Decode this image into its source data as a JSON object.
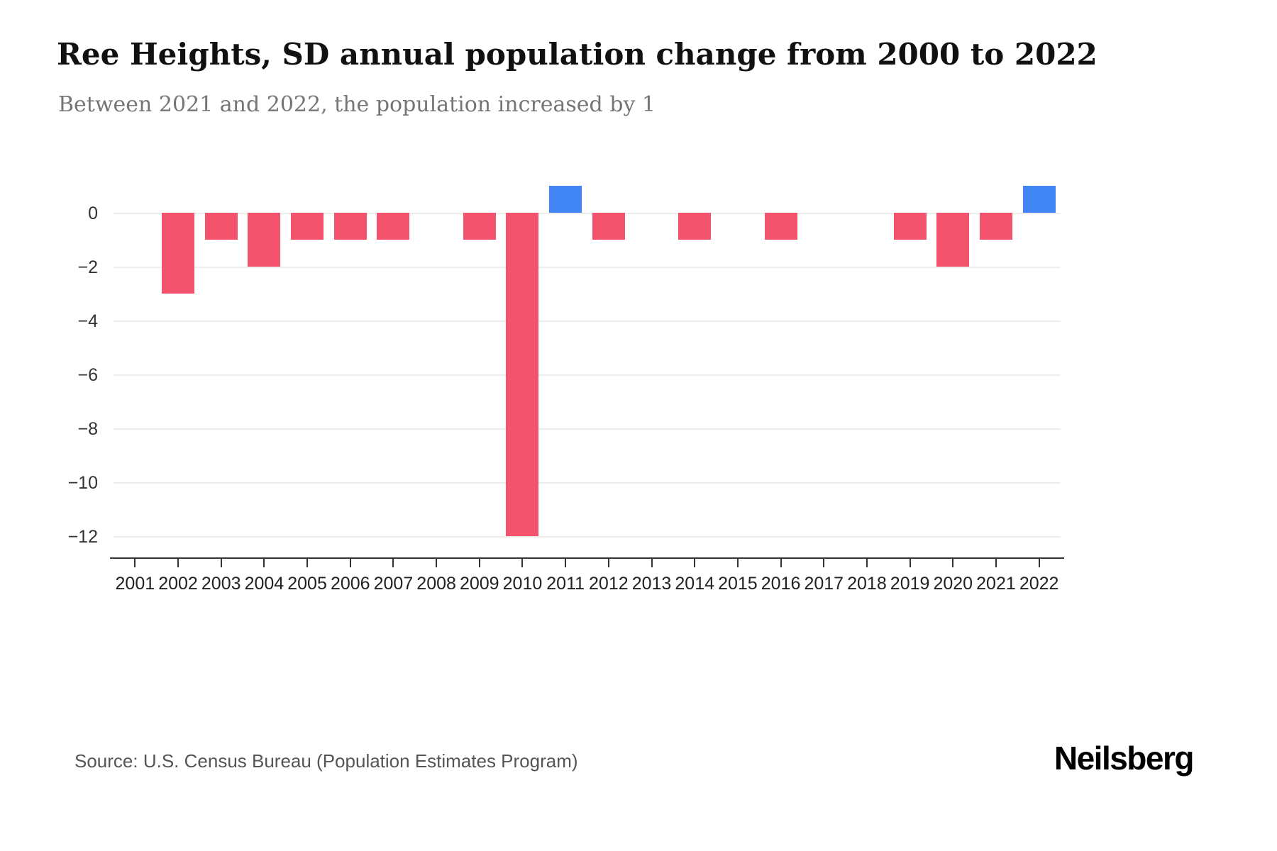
{
  "header": {
    "title": "Ree Heights, SD annual population change from 2000 to 2022",
    "subtitle": "Between 2021 and 2022, the population increased by 1"
  },
  "footer": {
    "source": "Source: U.S. Census Bureau (Population Estimates Program)",
    "brand": "Neilsberg"
  },
  "chart_data": {
    "type": "bar",
    "title": "Ree Heights, SD annual population change from 2000 to 2022",
    "xlabel": "",
    "ylabel": "",
    "categories": [
      "2001",
      "2002",
      "2003",
      "2004",
      "2005",
      "2006",
      "2007",
      "2008",
      "2009",
      "2010",
      "2011",
      "2012",
      "2013",
      "2014",
      "2015",
      "2016",
      "2017",
      "2018",
      "2019",
      "2020",
      "2021",
      "2022"
    ],
    "values": [
      0,
      -3,
      -1,
      -2,
      -1,
      -1,
      -1,
      0,
      -1,
      -12,
      1,
      -1,
      0,
      -1,
      0,
      -1,
      0,
      0,
      -1,
      -2,
      -1,
      1
    ],
    "yticks": [
      0,
      -2,
      -4,
      -6,
      -8,
      -10,
      -12
    ],
    "ytick_labels": [
      "0",
      "−2",
      "−4",
      "−6",
      "−8",
      "−10",
      "−12"
    ],
    "ylim": [
      -12.5,
      1
    ],
    "grid": "horizontal",
    "legend": "none",
    "colors": {
      "negative": "#f4536e",
      "positive": "#4285f4"
    }
  }
}
